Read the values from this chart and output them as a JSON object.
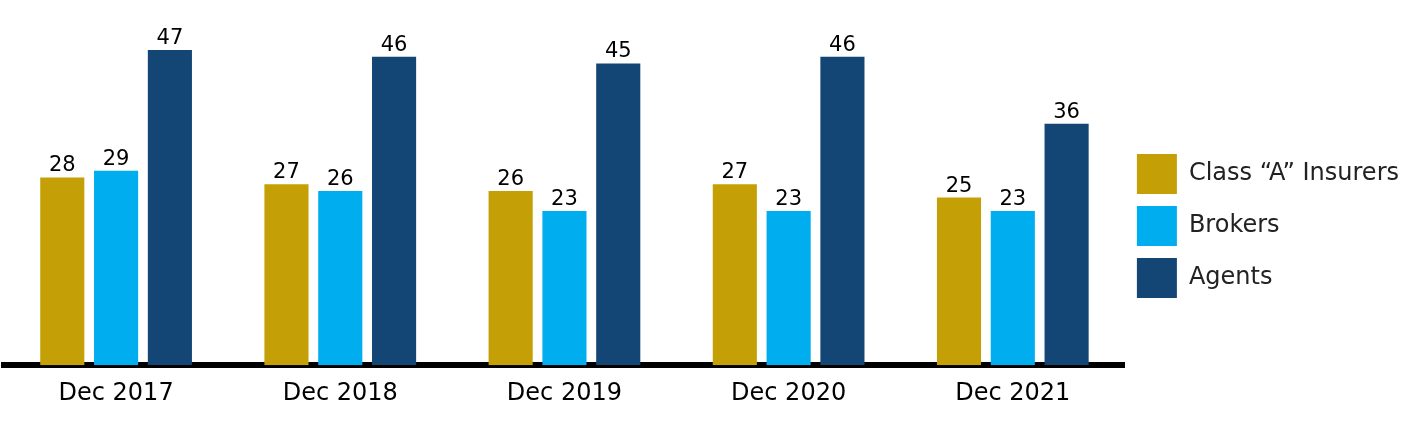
{
  "chart_data": {
    "type": "bar",
    "categories": [
      "Dec 2017",
      "Dec 2018",
      "Dec 2019",
      "Dec 2020",
      "Dec 2021"
    ],
    "series": [
      {
        "name": "Class “A” Insurers",
        "color": "#c4a006",
        "values": [
          28,
          27,
          26,
          27,
          25
        ]
      },
      {
        "name": "Brokers",
        "color": "#00adef",
        "values": [
          29,
          26,
          23,
          23,
          23
        ]
      },
      {
        "name": "Agents",
        "color": "#134674",
        "values": [
          47,
          46,
          45,
          46,
          36
        ]
      }
    ],
    "data_labels": true,
    "legend": "right",
    "grid": false
  }
}
